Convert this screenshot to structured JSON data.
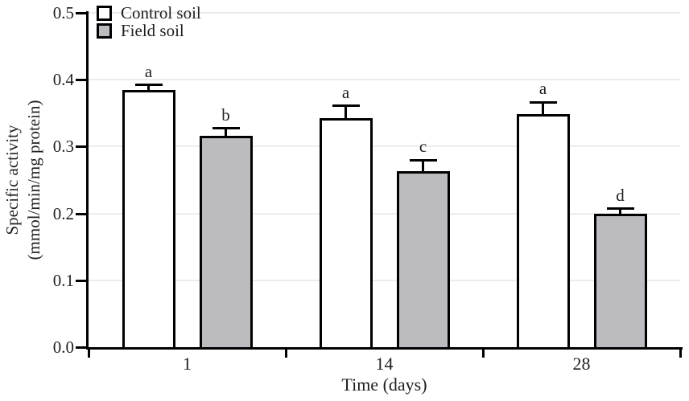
{
  "chart_data": {
    "type": "bar",
    "title": "",
    "xlabel": "Time (days)",
    "ylabel_line1": "Specific activity",
    "ylabel_line2": "(mmol/min/mg protein)",
    "categories": [
      "1",
      "14",
      "28"
    ],
    "series": [
      {
        "name": "Control soil",
        "fill": "#ffffff",
        "values": [
          0.385,
          0.342,
          0.348
        ],
        "errors": [
          0.007,
          0.019,
          0.018
        ],
        "letters": [
          "a",
          "a",
          "a"
        ]
      },
      {
        "name": "Field soil",
        "fill": "#bcbcc0",
        "values": [
          0.316,
          0.263,
          0.199
        ],
        "errors": [
          0.011,
          0.017,
          0.008
        ],
        "letters": [
          "b",
          "c",
          "d"
        ]
      }
    ],
    "ylim": [
      0,
      0.5
    ],
    "yticks": [
      {
        "value": 0.0,
        "label": "0.0"
      },
      {
        "value": 0.1,
        "label": "0.1"
      },
      {
        "value": 0.2,
        "label": "0.2"
      },
      {
        "value": 0.3,
        "label": "0.3"
      },
      {
        "value": 0.4,
        "label": "0.4"
      },
      {
        "value": 0.5,
        "label": "0.5"
      }
    ],
    "grid": true,
    "legend_position": "top-left",
    "colors": {
      "bar_border": "#000000",
      "gridline": "#ececec",
      "axis": "#000000",
      "text": "#1f1f1f"
    }
  }
}
